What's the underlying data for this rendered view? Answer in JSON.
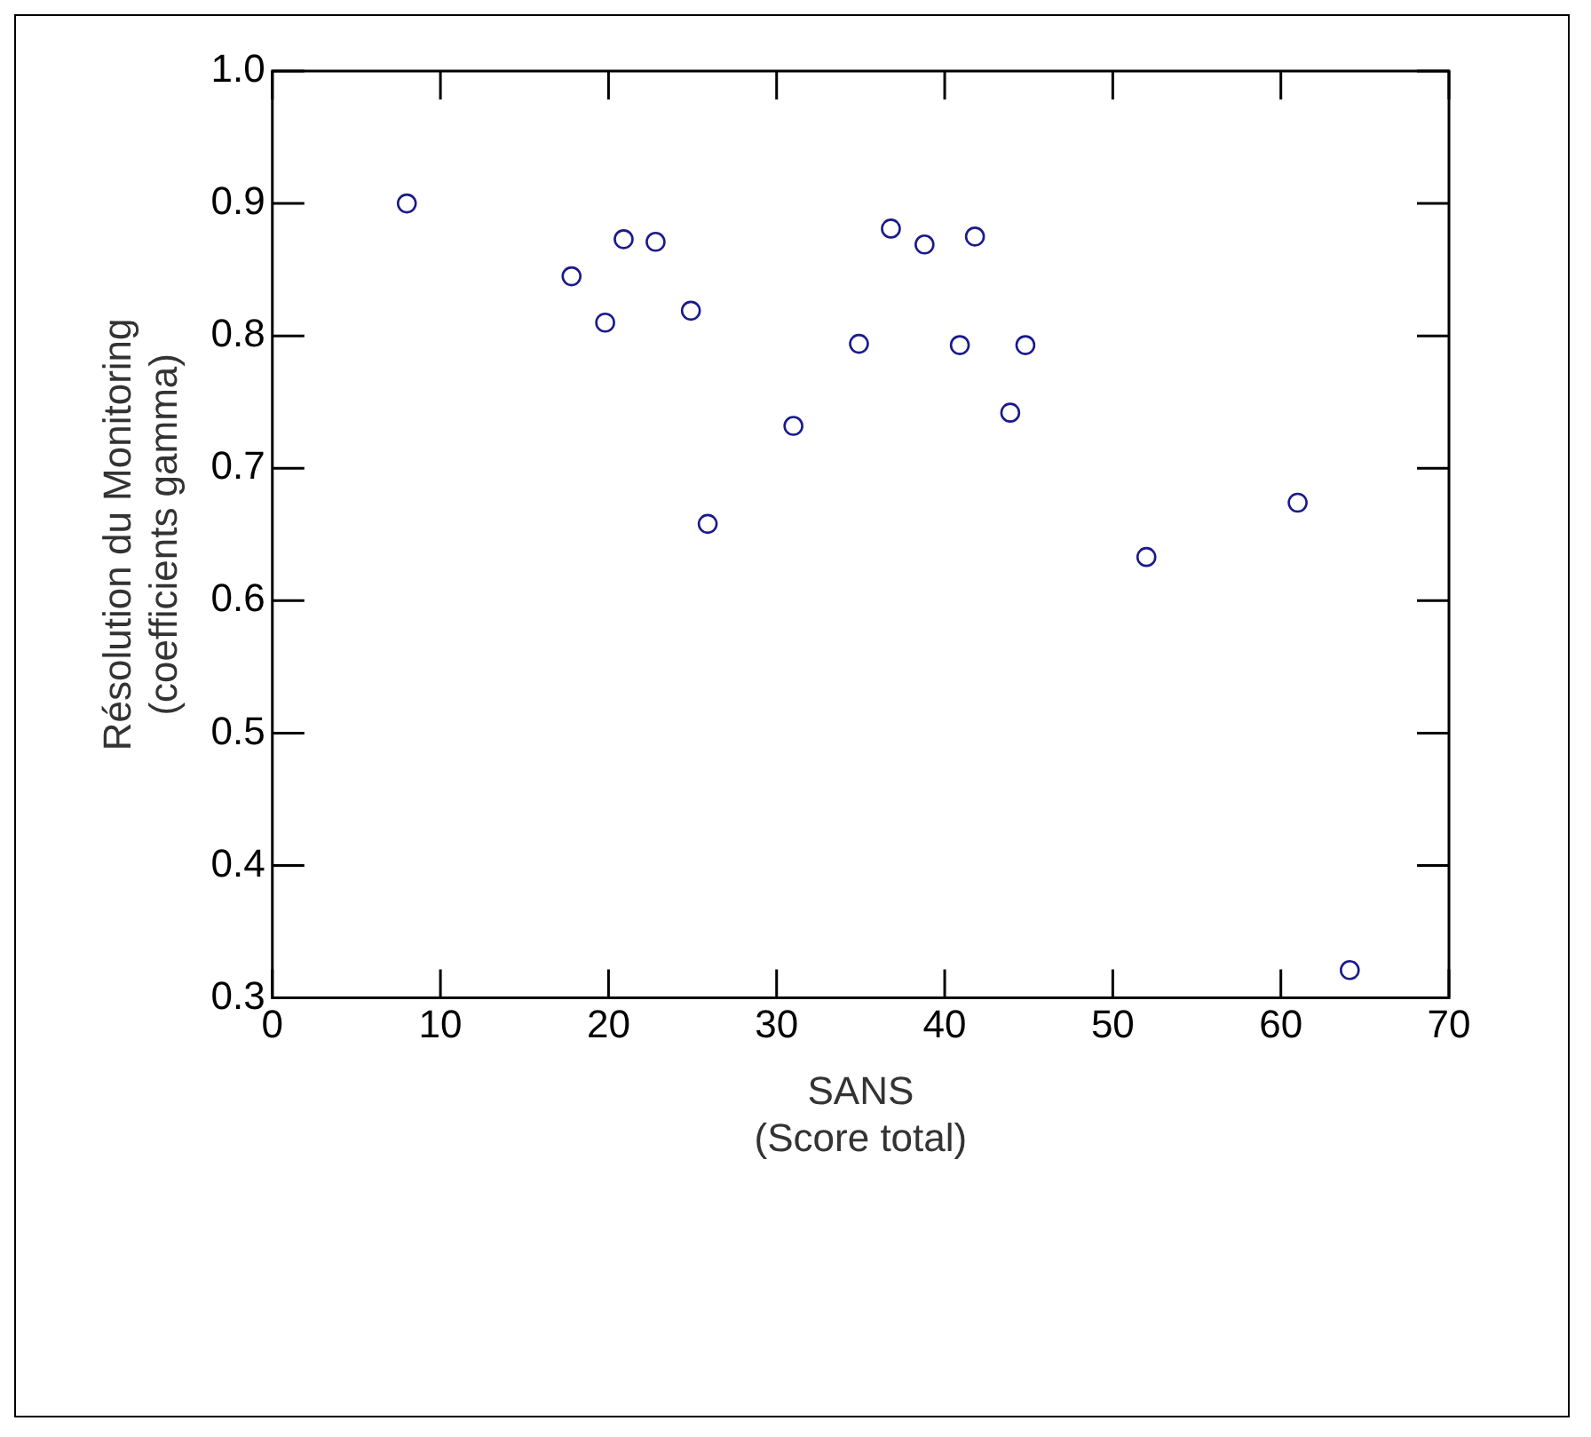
{
  "chart_data": {
    "type": "scatter",
    "xlabel": "SANS\n(Score total)",
    "ylabel": "Résolution du Monitoring\n(coefficients gamma)",
    "x": [
      8.0,
      17.8,
      19.8,
      20.9,
      22.8,
      24.9,
      25.9,
      31.0,
      34.9,
      36.8,
      38.8,
      40.9,
      41.8,
      43.9,
      44.8,
      52.0,
      61.0,
      64.1
    ],
    "series": [
      {
        "color": "#1a1a8c",
        "values": [
          0.9,
          0.845,
          0.81,
          0.873,
          0.871,
          0.819,
          0.658,
          0.732,
          0.794,
          0.881,
          0.869,
          0.793,
          0.875,
          0.742,
          0.793,
          0.633,
          0.674,
          0.321
        ]
      }
    ],
    "xlim": [
      0,
      70
    ],
    "xticks": [
      0,
      10,
      20,
      30,
      40,
      50,
      60,
      70
    ],
    "ylim": [
      0.3,
      1.0
    ],
    "yticks": [
      {
        "value": 0.3,
        "label": "0.3"
      },
      {
        "value": 0.4,
        "label": "0.4"
      },
      {
        "value": 0.5,
        "label": "0.5"
      },
      {
        "value": 0.6,
        "label": "0.6"
      },
      {
        "value": 0.7,
        "label": "0.7"
      },
      {
        "value": 0.8,
        "label": "0.8"
      },
      {
        "value": 0.9,
        "label": "0.9"
      },
      {
        "value": 1.0,
        "label": "1.0"
      }
    ],
    "marker": "circle",
    "grid": false,
    "legend": false
  }
}
